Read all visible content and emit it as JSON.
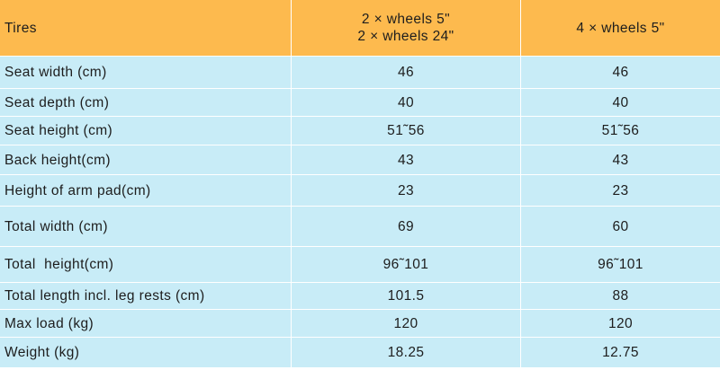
{
  "table": {
    "header": [
      "Tires",
      "2 × wheels 5\"\n2 × wheels 24\"",
      "4 × wheels 5\""
    ],
    "rows": [
      [
        "Seat width (cm)",
        "46",
        "46"
      ],
      [
        "Seat depth (cm)",
        "40",
        "40"
      ],
      [
        "Seat height (cm)",
        "51˜56",
        "51˜56"
      ],
      [
        "Back height(cm)",
        "43",
        "43"
      ],
      [
        "Height of arm pad(cm)",
        "23",
        "23"
      ],
      [
        "Total width (cm)",
        "69",
        "60"
      ],
      [
        "Total  height(cm)",
        "96˜101",
        "96˜101"
      ],
      [
        "Total length incl. leg rests (cm)",
        "101.5",
        "88"
      ],
      [
        "Max load (kg)",
        "120",
        "120"
      ],
      [
        "Weight (kg)",
        "18.25",
        "12.75"
      ]
    ]
  }
}
